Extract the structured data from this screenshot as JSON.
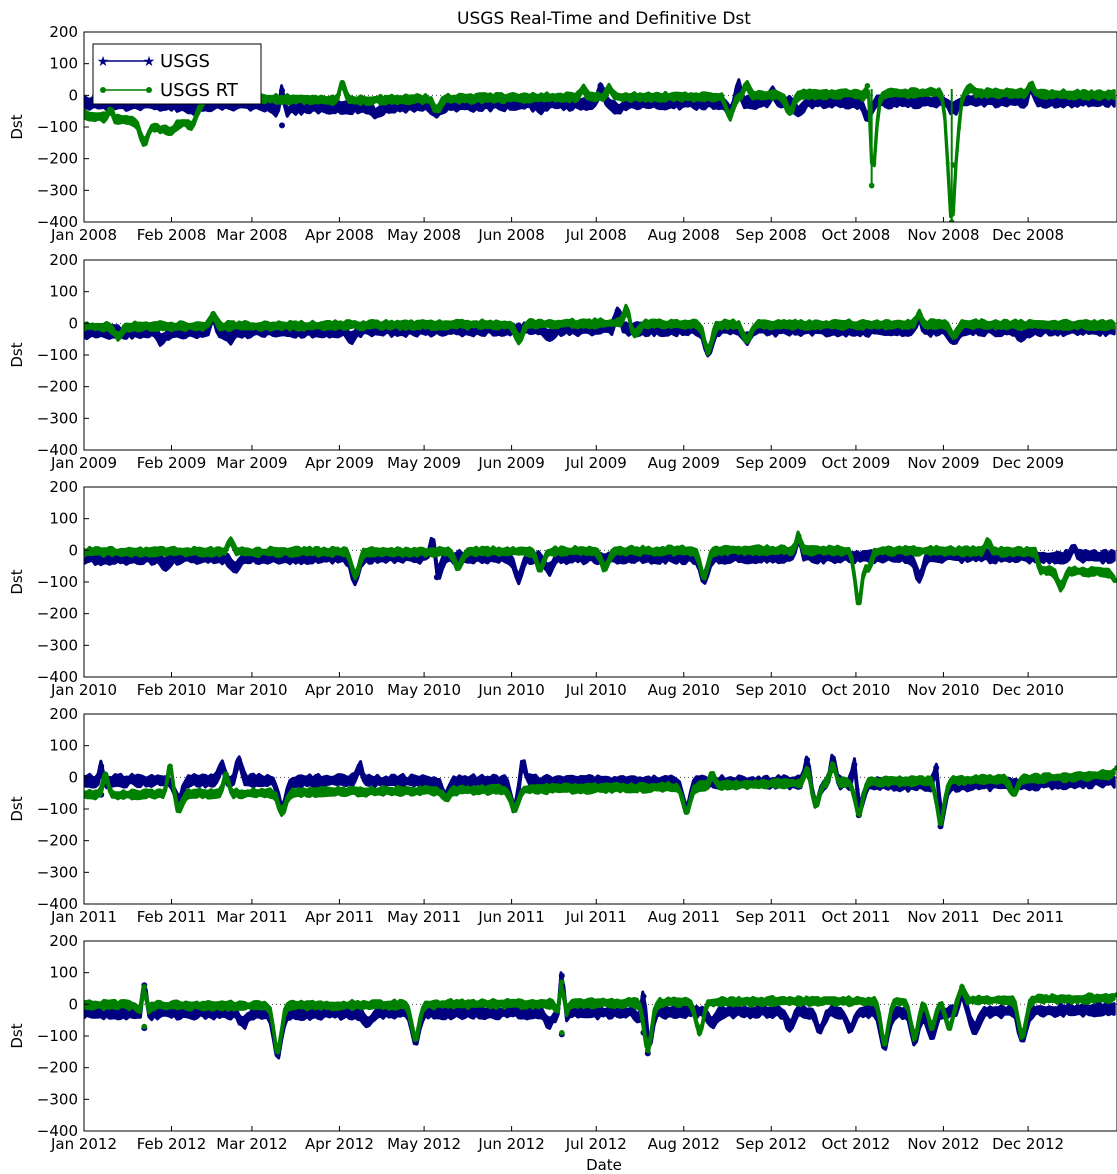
{
  "chart_data": {
    "type": "line",
    "title": "USGS Real-Time and Definitive Dst",
    "xlabel": "Date",
    "ylabel": "Dst",
    "ylim": [
      -400,
      200
    ],
    "yticks": [
      200,
      100,
      0,
      -100,
      -200,
      -300,
      -400
    ],
    "ytick_labels": [
      "200",
      "100",
      "0",
      "−100",
      "−200",
      "−300",
      "−400"
    ],
    "legend": {
      "placement": "top-left",
      "entries": [
        {
          "name": "USGS",
          "color": "#000080",
          "marker": "star"
        },
        {
          "name": "USGS RT",
          "color": "#008000",
          "marker": "dot"
        }
      ]
    },
    "series_colors": {
      "USGS": "#000080",
      "USGS RT": "#008000"
    },
    "panels": [
      {
        "year": 2008,
        "xticks": [
          "Jan 2008",
          "Feb 2008",
          "Mar 2008",
          "Apr 2008",
          "May 2008",
          "Jun 2008",
          "Jul 2008",
          "Aug 2008",
          "Sep 2008",
          "Oct 2008",
          "Nov 2008",
          "Dec 2008"
        ],
        "usgs_base": [
          [
            0,
            -25
          ],
          [
            1,
            -30
          ],
          [
            2,
            -28
          ],
          [
            2.3,
            -40
          ],
          [
            3,
            -38
          ],
          [
            4,
            -32
          ],
          [
            5,
            -28
          ],
          [
            6,
            -26
          ],
          [
            7,
            -24
          ],
          [
            8,
            -22
          ],
          [
            9,
            -20
          ],
          [
            10,
            -18
          ],
          [
            11,
            -18
          ],
          [
            12,
            -15
          ]
        ],
        "usgs_dips": [
          [
            1.25,
            -45
          ],
          [
            2.3,
            -95
          ],
          [
            3.4,
            -60
          ],
          [
            4.1,
            -55
          ],
          [
            5.3,
            -40
          ],
          [
            6.2,
            -45
          ],
          [
            7.5,
            -50
          ],
          [
            8.3,
            -55
          ],
          [
            9.1,
            -70
          ],
          [
            10.1,
            -45
          ]
        ],
        "usgs_spikes": [
          [
            2.3,
            15
          ],
          [
            6.0,
            30
          ],
          [
            7.6,
            30
          ],
          [
            8.0,
            10
          ],
          [
            11.0,
            25
          ]
        ],
        "rt_base": [
          [
            0,
            -60
          ],
          [
            0.3,
            -75
          ],
          [
            0.7,
            -85
          ],
          [
            0.9,
            -110
          ],
          [
            1.1,
            -90
          ],
          [
            1.2,
            -85
          ],
          [
            1.4,
            -10
          ],
          [
            2,
            -10
          ],
          [
            3,
            -15
          ],
          [
            4,
            -12
          ],
          [
            5,
            -8
          ],
          [
            6,
            -5
          ],
          [
            7,
            -5
          ],
          [
            8,
            0
          ],
          [
            9,
            5
          ],
          [
            10,
            8
          ],
          [
            11,
            5
          ],
          [
            12,
            0
          ]
        ],
        "rt_dips": [
          [
            0.7,
            -150
          ],
          [
            1.0,
            -110
          ],
          [
            1.25,
            -95
          ],
          [
            4.1,
            -45
          ],
          [
            7.5,
            -65
          ],
          [
            8.2,
            -55
          ],
          [
            9.15,
            -285
          ],
          [
            10.08,
            -400
          ],
          [
            10.1,
            -220
          ]
        ],
        "rt_spikes": [
          [
            0.3,
            -45
          ],
          [
            3.0,
            40
          ],
          [
            5.8,
            20
          ],
          [
            6.1,
            25
          ],
          [
            7.7,
            35
          ],
          [
            9.1,
            30
          ],
          [
            10.3,
            25
          ],
          [
            11.0,
            35
          ]
        ]
      },
      {
        "year": 2009,
        "xticks": [
          "Jan 2009",
          "Feb 2009",
          "Mar 2009",
          "Apr 2009",
          "May 2009",
          "Jun 2009",
          "Jul 2009",
          "Aug 2009",
          "Sep 2009",
          "Oct 2009",
          "Nov 2009",
          "Dec 2009"
        ],
        "usgs_base": [
          [
            0,
            -28
          ],
          [
            2,
            -25
          ],
          [
            4,
            -20
          ],
          [
            6,
            -18
          ],
          [
            8,
            -20
          ],
          [
            10,
            -20
          ],
          [
            12,
            -18
          ]
        ],
        "usgs_dips": [
          [
            0.9,
            -55
          ],
          [
            1.7,
            -50
          ],
          [
            3.1,
            -45
          ],
          [
            5.4,
            -40
          ],
          [
            7.25,
            -95
          ],
          [
            7.7,
            -50
          ],
          [
            10.1,
            -55
          ],
          [
            10.9,
            -45
          ]
        ],
        "usgs_spikes": [
          [
            1.5,
            25
          ],
          [
            6.2,
            40
          ],
          [
            9.7,
            25
          ]
        ],
        "rt_base": [
          [
            0,
            -10
          ],
          [
            2,
            -8
          ],
          [
            4,
            -5
          ],
          [
            6,
            0
          ],
          [
            8,
            -5
          ],
          [
            10,
            -3
          ],
          [
            12,
            -5
          ]
        ],
        "rt_dips": [
          [
            0.4,
            -45
          ],
          [
            5.05,
            -50
          ],
          [
            6.4,
            -35
          ],
          [
            7.25,
            -90
          ],
          [
            7.7,
            -55
          ],
          [
            10.1,
            -40
          ]
        ],
        "rt_spikes": [
          [
            1.5,
            30
          ],
          [
            6.3,
            45
          ],
          [
            9.7,
            30
          ]
        ]
      },
      {
        "year": 2010,
        "xticks": [
          "Jan 2010",
          "Feb 2010",
          "Mar 2010",
          "Apr 2010",
          "May 2010",
          "Jun 2010",
          "Jul 2010",
          "Aug 2010",
          "Sep 2010",
          "Oct 2010",
          "Nov 2010",
          "Dec 2010"
        ],
        "usgs_base": [
          [
            0,
            -25
          ],
          [
            2,
            -22
          ],
          [
            4,
            -20
          ],
          [
            6,
            -22
          ],
          [
            8,
            -20
          ],
          [
            10,
            -18
          ],
          [
            11,
            -20
          ],
          [
            12,
            -20
          ]
        ],
        "usgs_dips": [
          [
            0.95,
            -45
          ],
          [
            1.75,
            -55
          ],
          [
            3.15,
            -90
          ],
          [
            4.1,
            -85
          ],
          [
            5.05,
            -90
          ],
          [
            5.4,
            -60
          ],
          [
            7.2,
            -90
          ],
          [
            9.7,
            -85
          ]
        ],
        "usgs_spikes": [
          [
            4.05,
            30
          ],
          [
            8.3,
            45
          ],
          [
            11.5,
            10
          ]
        ],
        "rt_base": [
          [
            0,
            -5
          ],
          [
            2,
            -5
          ],
          [
            4,
            -5
          ],
          [
            6,
            -2
          ],
          [
            8,
            0
          ],
          [
            10,
            -2
          ],
          [
            11.05,
            -5
          ],
          [
            11.1,
            -60
          ],
          [
            11.5,
            -65
          ],
          [
            12,
            -70
          ]
        ],
        "rt_dips": [
          [
            3.15,
            -80
          ],
          [
            4.35,
            -55
          ],
          [
            5.3,
            -60
          ],
          [
            6.05,
            -55
          ],
          [
            7.2,
            -85
          ],
          [
            9.0,
            -165
          ],
          [
            9.1,
            -60
          ],
          [
            11.35,
            -115
          ],
          [
            12,
            -95
          ]
        ],
        "rt_spikes": [
          [
            1.7,
            30
          ],
          [
            8.3,
            45
          ],
          [
            10.5,
            30
          ]
        ]
      },
      {
        "year": 2011,
        "xticks": [
          "Jan 2011",
          "Feb 2011",
          "Mar 2011",
          "Apr 2011",
          "May 2011",
          "Jun 2011",
          "Jul 2011",
          "Aug 2011",
          "Sep 2011",
          "Oct 2011",
          "Nov 2011",
          "Dec 2011"
        ],
        "usgs_base": [
          [
            0,
            -10
          ],
          [
            2,
            -10
          ],
          [
            4,
            -12
          ],
          [
            6,
            -15
          ],
          [
            8,
            -15
          ],
          [
            9,
            -20
          ],
          [
            10,
            -25
          ],
          [
            11,
            -20
          ],
          [
            12,
            -10
          ]
        ],
        "usgs_dips": [
          [
            0.2,
            -55
          ],
          [
            1.1,
            -75
          ],
          [
            2.3,
            -100
          ],
          [
            4.2,
            -60
          ],
          [
            5.0,
            -95
          ],
          [
            7.0,
            -100
          ],
          [
            8.5,
            -80
          ],
          [
            9.0,
            -120
          ],
          [
            9.95,
            -155
          ]
        ],
        "usgs_spikes": [
          [
            0.2,
            35
          ],
          [
            1.6,
            40
          ],
          [
            1.8,
            55
          ],
          [
            3.2,
            35
          ],
          [
            5.1,
            45
          ],
          [
            8.4,
            55
          ],
          [
            8.7,
            60
          ],
          [
            8.95,
            40
          ],
          [
            9.9,
            30
          ]
        ],
        "rt_base": [
          [
            0,
            -55
          ],
          [
            2,
            -50
          ],
          [
            4,
            -42
          ],
          [
            6,
            -35
          ],
          [
            7,
            -30
          ],
          [
            8,
            -20
          ],
          [
            9,
            -15
          ],
          [
            10,
            -10
          ],
          [
            11,
            -5
          ],
          [
            12,
            10
          ]
        ],
        "rt_dips": [
          [
            1.1,
            -100
          ],
          [
            2.3,
            -110
          ],
          [
            4.2,
            -65
          ],
          [
            5.0,
            -100
          ],
          [
            7.0,
            -110
          ],
          [
            8.5,
            -85
          ],
          [
            9.0,
            -115
          ],
          [
            9.95,
            -145
          ],
          [
            10.8,
            -50
          ]
        ],
        "rt_spikes": [
          [
            0.25,
            10
          ],
          [
            1.0,
            35
          ],
          [
            1.65,
            10
          ],
          [
            7.3,
            10
          ],
          [
            8.4,
            25
          ],
          [
            8.7,
            40
          ],
          [
            12,
            30
          ]
        ]
      },
      {
        "year": 2012,
        "xticks": [
          "Jan 2012",
          "Feb 2012",
          "Mar 2012",
          "Apr 2012",
          "May 2012",
          "Jun 2012",
          "Jul 2012",
          "Aug 2012",
          "Sep 2012",
          "Oct 2012",
          "Nov 2012",
          "Dec 2012"
        ],
        "usgs_base": [
          [
            0,
            -25
          ],
          [
            2,
            -28
          ],
          [
            4,
            -25
          ],
          [
            6,
            -25
          ],
          [
            8,
            -22
          ],
          [
            10,
            -25
          ],
          [
            12,
            -15
          ]
        ],
        "usgs_dips": [
          [
            0.7,
            -75
          ],
          [
            1.85,
            -60
          ],
          [
            2.25,
            -160
          ],
          [
            3.3,
            -60
          ],
          [
            3.85,
            -115
          ],
          [
            5.4,
            -60
          ],
          [
            5.55,
            -95
          ],
          [
            6.5,
            -90
          ],
          [
            6.55,
            -155
          ],
          [
            7.3,
            -60
          ],
          [
            8.2,
            -70
          ],
          [
            8.55,
            -80
          ],
          [
            8.9,
            -80
          ],
          [
            9.3,
            -135
          ],
          [
            9.65,
            -115
          ],
          [
            9.85,
            -100
          ],
          [
            10.35,
            -80
          ],
          [
            10.9,
            -110
          ]
        ],
        "usgs_spikes": [
          [
            0.7,
            60
          ],
          [
            5.55,
            90
          ],
          [
            6.5,
            25
          ],
          [
            10.2,
            45
          ]
        ],
        "rt_base": [
          [
            0,
            -2
          ],
          [
            2,
            -5
          ],
          [
            4,
            0
          ],
          [
            6,
            3
          ],
          [
            8,
            10
          ],
          [
            10,
            10
          ],
          [
            12,
            20
          ]
        ],
        "rt_dips": [
          [
            0.7,
            -70
          ],
          [
            2.25,
            -150
          ],
          [
            3.85,
            -110
          ],
          [
            5.55,
            -90
          ],
          [
            6.55,
            -145
          ],
          [
            7.15,
            -90
          ],
          [
            9.3,
            -125
          ],
          [
            9.65,
            -105
          ],
          [
            9.85,
            -75
          ],
          [
            10.05,
            -75
          ],
          [
            10.9,
            -100
          ]
        ],
        "rt_spikes": [
          [
            0.7,
            55
          ],
          [
            5.55,
            70
          ],
          [
            10.2,
            55
          ],
          [
            12,
            30
          ]
        ]
      }
    ]
  }
}
